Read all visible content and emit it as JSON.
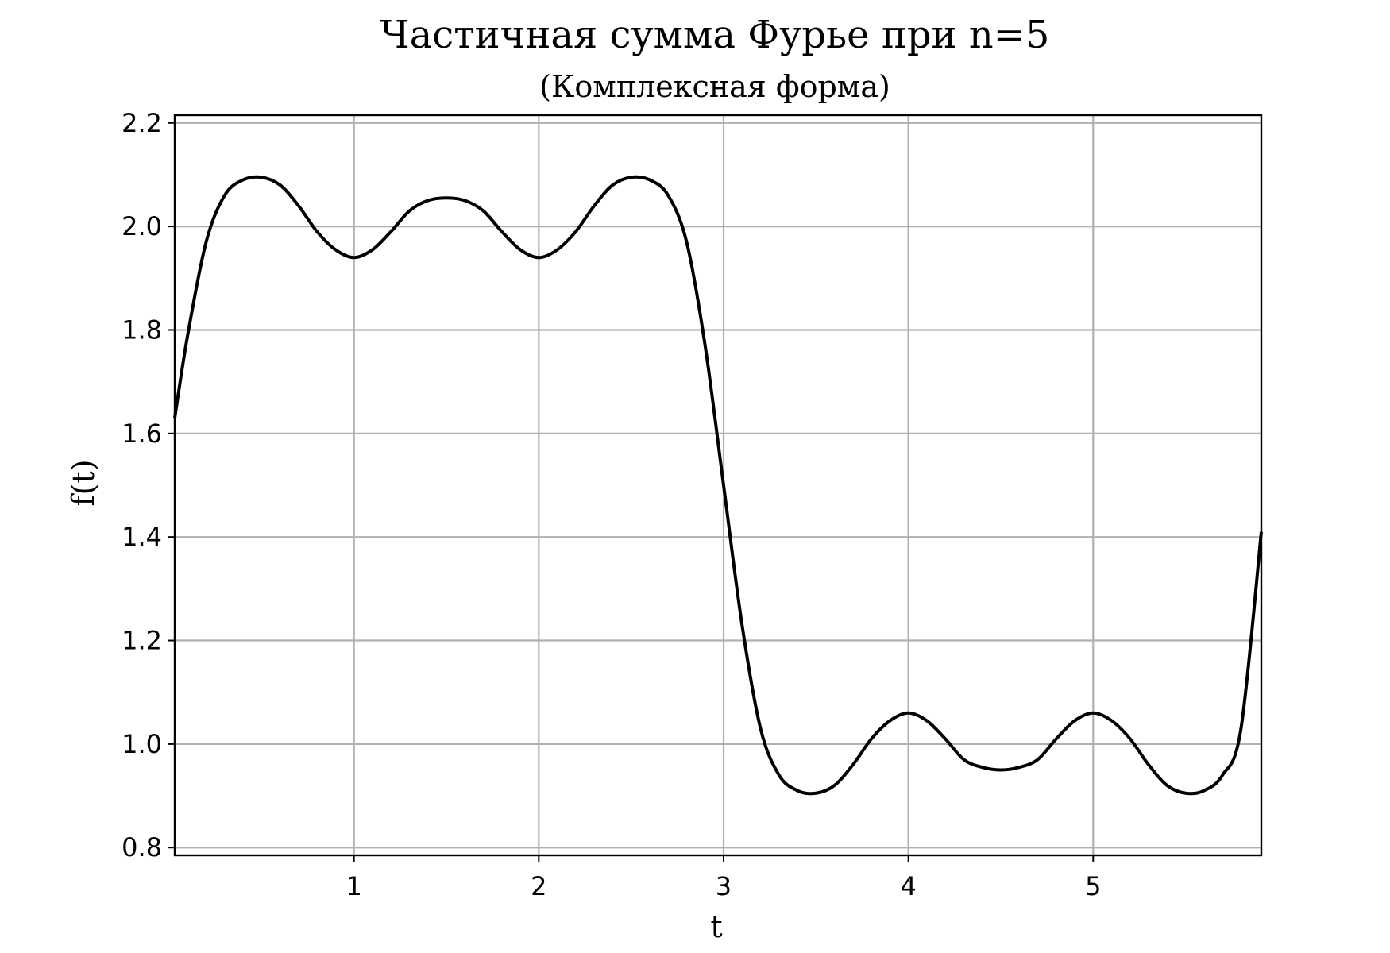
{
  "chart_data": {
    "type": "line",
    "title": "Частичная сумма Фурье при n=5",
    "subtitle": "(Комплексная форма)",
    "xlabel": "t",
    "ylabel": "f(t)",
    "xlim": [
      0.03,
      5.91
    ],
    "ylim": [
      0.785,
      2.215
    ],
    "grid": true,
    "x_ticks": [
      1,
      2,
      3,
      4,
      5
    ],
    "x_tick_labels": [
      "1",
      "2",
      "3",
      "4",
      "5"
    ],
    "y_ticks": [
      0.8,
      1.0,
      1.2,
      1.4,
      1.6,
      1.8,
      2.0,
      2.2
    ],
    "y_tick_labels": [
      "0.8",
      "1.0",
      "1.2",
      "1.4",
      "1.6",
      "1.8",
      "2.0",
      "2.2"
    ],
    "series": [
      {
        "color": "#000000",
        "x": [
          0.03,
          0.1,
          0.2,
          0.3,
          0.4,
          0.5,
          0.6,
          0.7,
          0.8,
          0.9,
          1.0,
          1.1,
          1.2,
          1.3,
          1.4,
          1.5,
          1.6,
          1.7,
          1.8,
          1.9,
          2.0,
          2.1,
          2.2,
          2.3,
          2.4,
          2.5,
          2.6,
          2.7,
          2.8,
          2.9,
          3.0,
          3.1,
          3.2,
          3.3,
          3.4,
          3.5,
          3.6,
          3.7,
          3.8,
          3.9,
          4.0,
          4.1,
          4.2,
          4.3,
          4.4,
          4.5,
          4.6,
          4.7,
          4.8,
          4.9,
          5.0,
          5.1,
          5.2,
          5.3,
          5.4,
          5.5,
          5.6,
          5.7,
          5.8,
          5.91
        ],
        "y": [
          1.63,
          1.79,
          1.97,
          2.06,
          2.09,
          2.095,
          2.08,
          2.04,
          1.99,
          1.955,
          1.94,
          1.955,
          1.99,
          2.03,
          2.05,
          2.055,
          2.05,
          2.03,
          1.99,
          1.955,
          1.94,
          1.955,
          1.99,
          2.04,
          2.08,
          2.095,
          2.09,
          2.06,
          1.97,
          1.77,
          1.5,
          1.23,
          1.03,
          0.94,
          0.91,
          0.905,
          0.92,
          0.96,
          1.01,
          1.045,
          1.06,
          1.045,
          1.01,
          0.97,
          0.955,
          0.95,
          0.955,
          0.97,
          1.01,
          1.045,
          1.06,
          1.045,
          1.01,
          0.96,
          0.92,
          0.905,
          0.91,
          0.94,
          1.03,
          1.41
        ]
      }
    ]
  }
}
